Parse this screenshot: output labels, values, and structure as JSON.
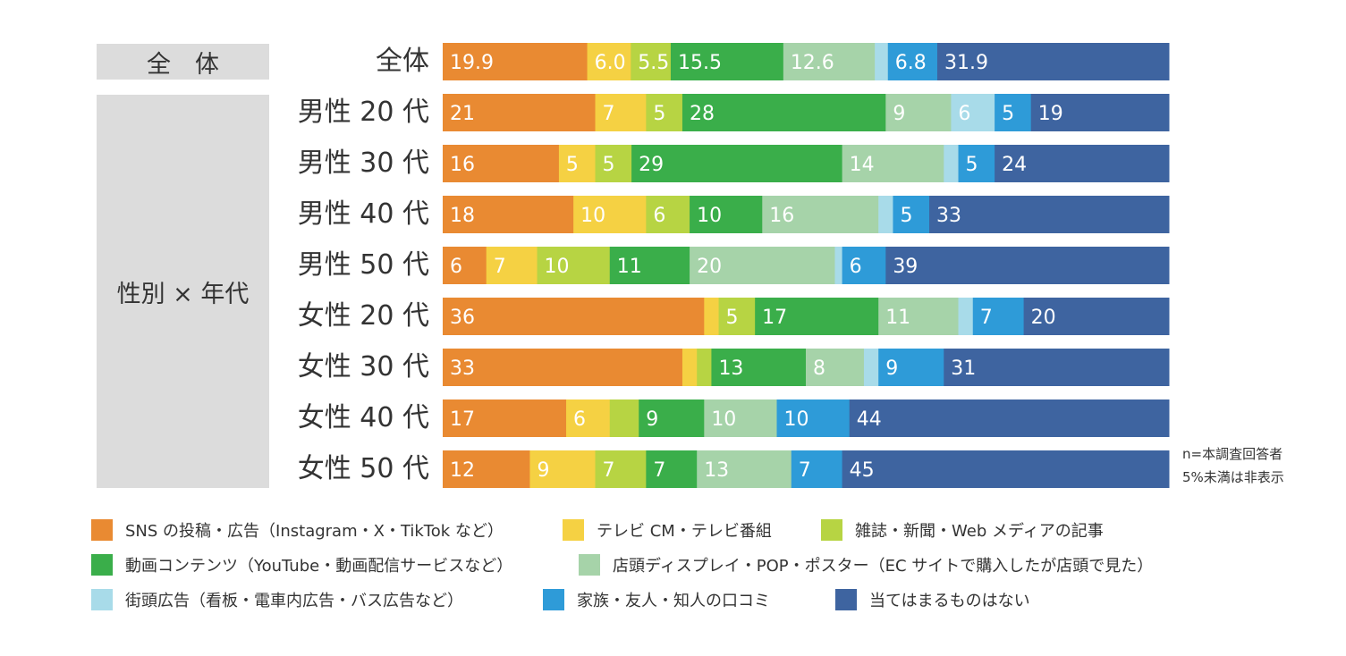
{
  "chart_data": {
    "type": "bar",
    "orientation": "horizontal",
    "stacked": true,
    "xlim": [
      0,
      100
    ],
    "groups": [
      {
        "label": "全　体",
        "rows": [
          "全体"
        ]
      },
      {
        "label": "性別 × 年代",
        "rows": [
          "男性 20 代",
          "男性 30 代",
          "男性 40 代",
          "男性 50 代",
          "女性 20 代",
          "女性 30 代",
          "女性 40 代",
          "女性 50 代"
        ]
      }
    ],
    "categories": [
      "全体",
      "男性 20 代",
      "男性 30 代",
      "男性 40 代",
      "男性 50 代",
      "女性 20 代",
      "女性 30 代",
      "女性 40 代",
      "女性 50 代"
    ],
    "series": [
      {
        "name": "SNS の投稿・広告（Instagram・X・TikTok など）",
        "color": "#e98a32",
        "values": [
          19.9,
          21,
          16,
          18,
          6,
          36,
          33,
          17,
          12
        ],
        "labels": [
          "19.9",
          "21",
          "16",
          "18",
          "6",
          "36",
          "33",
          "17",
          "12"
        ]
      },
      {
        "name": "テレビ CM・テレビ番組",
        "color": "#f5d143",
        "values": [
          6.0,
          7,
          5,
          10,
          7,
          2,
          2,
          6,
          9
        ],
        "labels": [
          "6.0",
          "7",
          "5",
          "10",
          "7",
          "",
          "",
          "6",
          "9"
        ]
      },
      {
        "name": "雑誌・新聞・Web メディアの記事",
        "color": "#b7d443",
        "values": [
          5.5,
          5,
          5,
          6,
          10,
          5,
          2,
          4,
          7
        ],
        "labels": [
          "5.5",
          "5",
          "5",
          "6",
          "10",
          "5",
          "",
          "",
          "7"
        ]
      },
      {
        "name": "動画コンテンツ（YouTube・動画配信サービスなど）",
        "color": "#3aae4a",
        "values": [
          15.5,
          28,
          29,
          10,
          11,
          17,
          13,
          9,
          7
        ],
        "labels": [
          "15.5",
          "28",
          "29",
          "10",
          "11",
          "17",
          "13",
          "9",
          "7"
        ]
      },
      {
        "name": "店頭ディスプレイ・POP・ポスター（EC サイトで購入したが店頭で見た）",
        "color": "#a6d3a9",
        "values": [
          12.6,
          9,
          14,
          16,
          20,
          11,
          8,
          10,
          13
        ],
        "labels": [
          "12.6",
          "9",
          "14",
          "16",
          "20",
          "11",
          "8",
          "10",
          "13"
        ]
      },
      {
        "name": "街頭広告（看板・電車内広告・バス広告など）",
        "color": "#a8dbe9",
        "values": [
          1.8,
          6,
          2,
          2,
          1,
          2,
          2,
          0,
          0
        ],
        "labels": [
          "",
          "6",
          "",
          "",
          "",
          "",
          "",
          "",
          ""
        ]
      },
      {
        "name": "家族・友人・知人の口コミ",
        "color": "#2e9bd8",
        "values": [
          6.8,
          5,
          5,
          5,
          6,
          7,
          9,
          10,
          7
        ],
        "labels": [
          "6.8",
          "5",
          "5",
          "5",
          "6",
          "7",
          "9",
          "10",
          "7"
        ]
      },
      {
        "name": "当てはまるものはない",
        "color": "#3e64a0",
        "values": [
          31.9,
          19,
          24,
          33,
          39,
          20,
          31,
          44,
          45
        ],
        "labels": [
          "31.9",
          "19",
          "24",
          "33",
          "39",
          "20",
          "31",
          "44",
          "45"
        ]
      }
    ],
    "notes": [
      "n=本調査回答者",
      "5%未満は非表示"
    ]
  }
}
